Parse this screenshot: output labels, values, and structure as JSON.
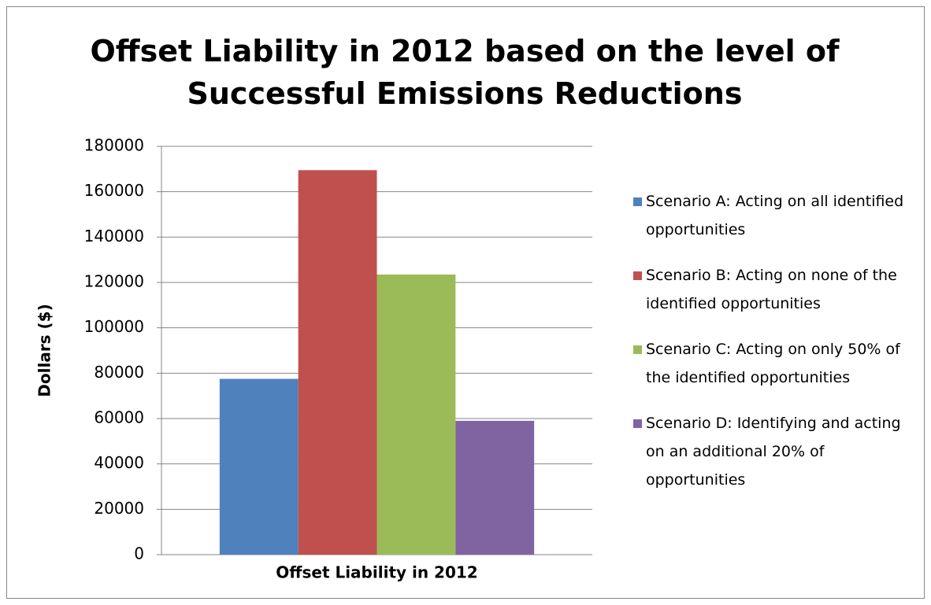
{
  "chart_data": {
    "type": "bar",
    "title": "Offset Liability in 2012 based on the level of Successful Emissions Reductions",
    "y_label": "Dollars ($)",
    "categories": [
      "Offset Liability in 2012"
    ],
    "series": [
      {
        "name": "Scenario A: Acting on all identified opportunities",
        "color": "#4f81bd",
        "values": [
          77500
        ]
      },
      {
        "name": "Scenario B: Acting on none of the identified opportunities",
        "color": "#c0504d",
        "values": [
          169500
        ]
      },
      {
        "name": "Scenario C: Acting on only 50% of the identified opportunities",
        "color": "#9bbb59",
        "values": [
          123500
        ]
      },
      {
        "name": "Scenario D: Identifying and acting on an additional 20% of opportunities",
        "color": "#8064a2",
        "values": [
          59000
        ]
      }
    ],
    "ylim": [
      0,
      180000
    ],
    "yticks": [
      0,
      20000,
      40000,
      60000,
      80000,
      100000,
      120000,
      140000,
      160000,
      180000
    ],
    "grid": true,
    "legend": "right"
  }
}
